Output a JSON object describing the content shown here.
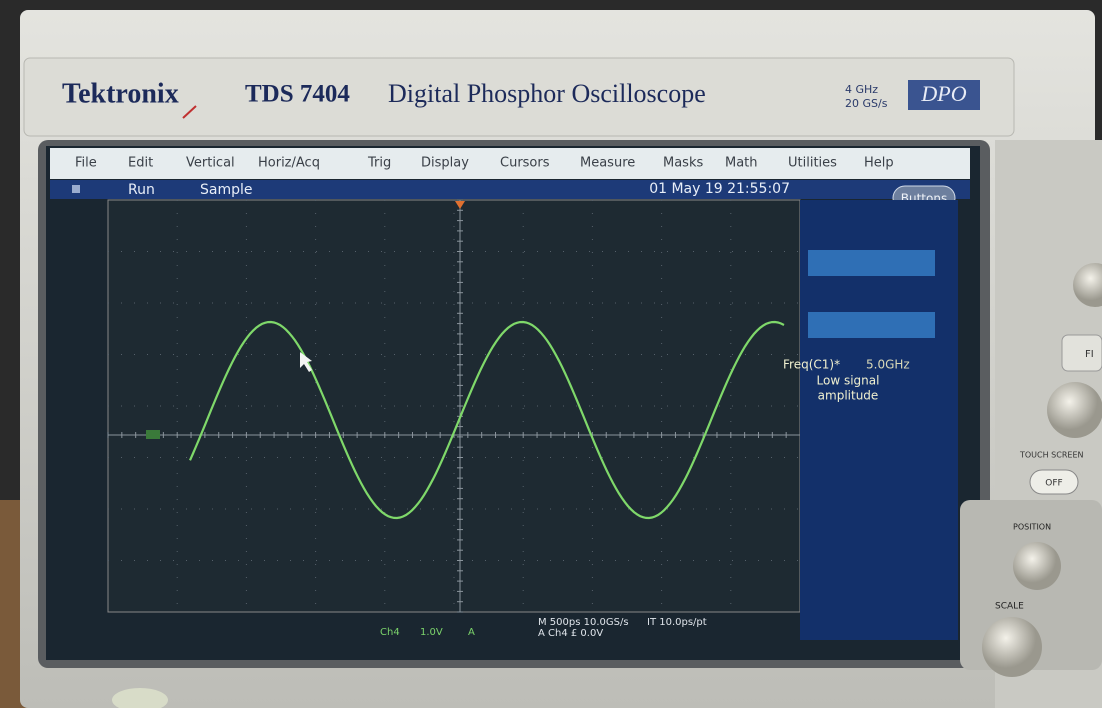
{
  "header": {
    "brand": "Tektronix",
    "model": "TDS 7404",
    "description": "Digital Phosphor Oscilloscope",
    "spec_bandwidth": "4 GHz",
    "spec_rate": "20 GS/s",
    "badge": "DPO"
  },
  "menu": [
    "File",
    "Edit",
    "Vertical",
    "Horiz/Acq",
    "Trig",
    "Display",
    "Cursors",
    "Measure",
    "Masks",
    "Math",
    "Utilities",
    "Help"
  ],
  "status": {
    "state": "Run",
    "mode": "Sample",
    "datetime": "01 May 19 21:55:07",
    "button": "Buttons"
  },
  "measurement": {
    "label": "Freq(C1)*",
    "value": "5.0GHz",
    "note_line1": "Low signal",
    "note_line2": "amplitude"
  },
  "readout": {
    "channel": "Ch4",
    "scale": "1.0V",
    "coupling": "A",
    "timebase": "M 500ps 10.0GS/s",
    "resolution": "IT 10.0ps/pt",
    "trigger": "A Ch4 £ 0.0V"
  },
  "panel": {
    "side_button": "FI",
    "touch_screen": "TOUCH SCREEN",
    "touch_off": "OFF",
    "position": "POSITION",
    "scale": "SCALE"
  }
}
